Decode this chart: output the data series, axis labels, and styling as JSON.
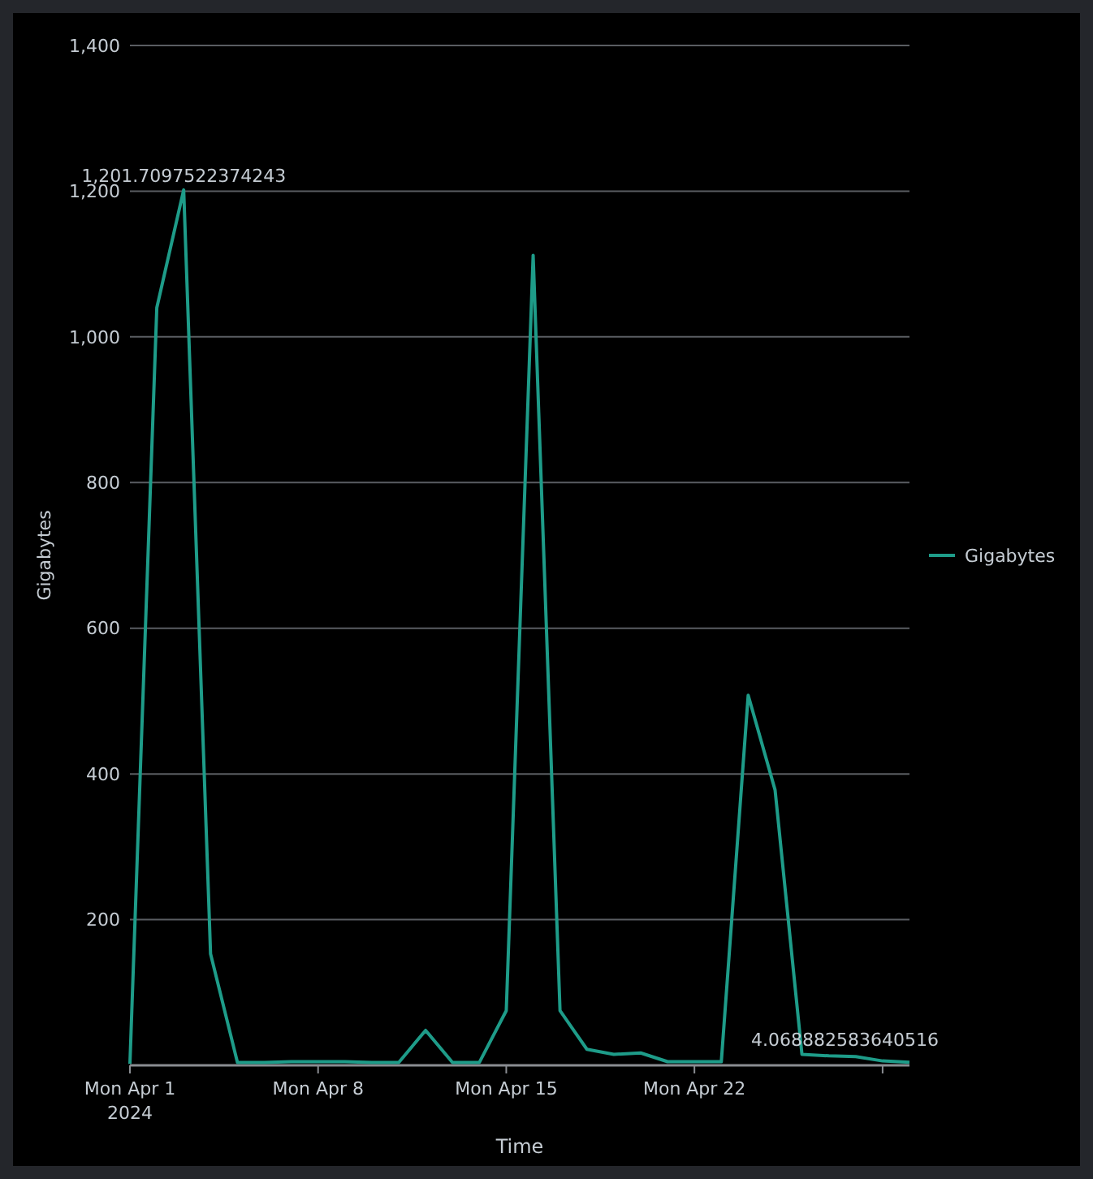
{
  "chart_data": {
    "type": "line",
    "xlabel": "Time",
    "ylabel": "Gigabytes",
    "x": [
      "2024-04-01",
      "2024-04-02",
      "2024-04-03",
      "2024-04-04",
      "2024-04-05",
      "2024-04-06",
      "2024-04-07",
      "2024-04-08",
      "2024-04-09",
      "2024-04-10",
      "2024-04-11",
      "2024-04-12",
      "2024-04-13",
      "2024-04-14",
      "2024-04-15",
      "2024-04-16",
      "2024-04-17",
      "2024-04-18",
      "2024-04-19",
      "2024-04-20",
      "2024-04-21",
      "2024-04-22",
      "2024-04-23",
      "2024-04-24",
      "2024-04-25",
      "2024-04-26",
      "2024-04-27",
      "2024-04-28",
      "2024-04-29",
      "2024-04-30"
    ],
    "series": [
      {
        "name": "Gigabytes",
        "color": "#1e9c89",
        "values": [
          2,
          1040,
          1201.7097522374243,
          153,
          4,
          4,
          5,
          5,
          5,
          4,
          4,
          48,
          4,
          4,
          75,
          1112,
          75,
          22,
          15,
          17,
          5,
          5,
          5,
          508,
          378,
          15,
          13,
          12,
          6,
          4.068882583640516
        ],
        "value_labels": [
          null,
          null,
          "1,201.7097522374243",
          null,
          null,
          null,
          null,
          null,
          null,
          null,
          null,
          null,
          null,
          null,
          null,
          null,
          null,
          null,
          null,
          null,
          null,
          null,
          null,
          null,
          null,
          null,
          null,
          null,
          null,
          "4.068882583640516"
        ]
      }
    ],
    "xlim": [
      "2024-04-01",
      "2024-04-30"
    ],
    "xticks": [
      {
        "value": "2024-04-01",
        "label": "Mon Apr 1\n2024"
      },
      {
        "value": "2024-04-08",
        "label": "Mon Apr 8"
      },
      {
        "value": "2024-04-15",
        "label": "Mon Apr 15"
      },
      {
        "value": "2024-04-22",
        "label": "Mon Apr 22"
      },
      {
        "value": "2024-04-29",
        "label": null
      }
    ],
    "ylim": [
      0,
      1400
    ],
    "yticks": [
      {
        "value": 200,
        "label": "200"
      },
      {
        "value": 400,
        "label": "400"
      },
      {
        "value": 600,
        "label": "600"
      },
      {
        "value": 800,
        "label": "800"
      },
      {
        "value": 1000,
        "label": "1,000"
      },
      {
        "value": 1200,
        "label": "1,200"
      },
      {
        "value": 1400,
        "label": "1,400"
      }
    ],
    "grid": "y",
    "legend": "right"
  }
}
